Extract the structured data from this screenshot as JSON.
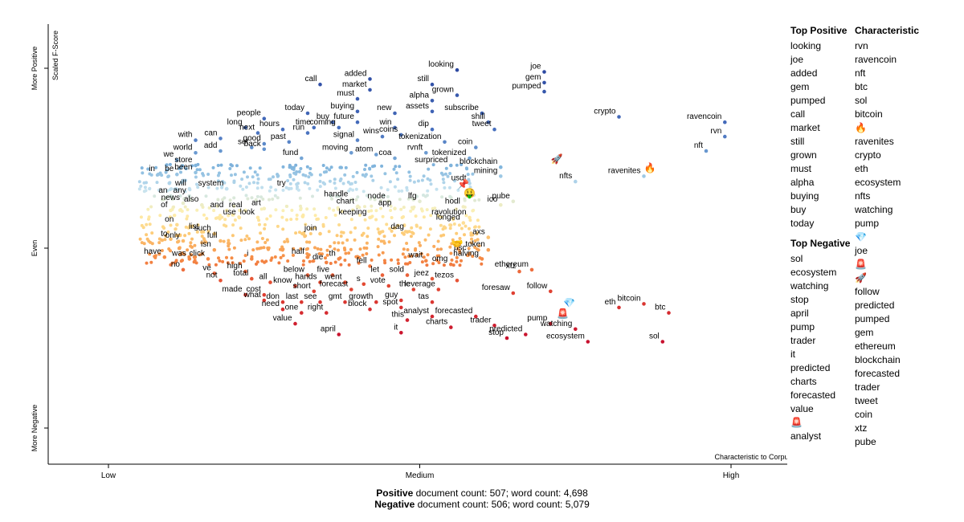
{
  "chart_data": {
    "type": "scatter",
    "title": "",
    "xlabel": "Characteristic to Corpus",
    "ylabel": "Scaled F-Score",
    "x_ticks": [
      "Low",
      "Medium",
      "High"
    ],
    "y_ticks": [
      "More Negative",
      "Even",
      "More Positive"
    ],
    "xlim": [
      0,
      1
    ],
    "ylim": [
      -1,
      1
    ],
    "labeled_points": [
      {
        "term": "joe",
        "x": 0.7,
        "y": 0.98
      },
      {
        "term": "looking",
        "x": 0.56,
        "y": 0.99
      },
      {
        "term": "gem",
        "x": 0.7,
        "y": 0.92
      },
      {
        "term": "added",
        "x": 0.42,
        "y": 0.94
      },
      {
        "term": "call",
        "x": 0.34,
        "y": 0.91
      },
      {
        "term": "still",
        "x": 0.52,
        "y": 0.91
      },
      {
        "term": "pumped",
        "x": 0.7,
        "y": 0.87
      },
      {
        "term": "market",
        "x": 0.42,
        "y": 0.88
      },
      {
        "term": "grown",
        "x": 0.56,
        "y": 0.85
      },
      {
        "term": "must",
        "x": 0.4,
        "y": 0.83
      },
      {
        "term": "alpha",
        "x": 0.52,
        "y": 0.82
      },
      {
        "term": "today",
        "x": 0.32,
        "y": 0.75
      },
      {
        "term": "buying",
        "x": 0.4,
        "y": 0.76
      },
      {
        "term": "new",
        "x": 0.46,
        "y": 0.75
      },
      {
        "term": "assets",
        "x": 0.52,
        "y": 0.76
      },
      {
        "term": "subscribe",
        "x": 0.6,
        "y": 0.75
      },
      {
        "term": "crypto",
        "x": 0.82,
        "y": 0.73
      },
      {
        "term": "people",
        "x": 0.25,
        "y": 0.72
      },
      {
        "term": "buy",
        "x": 0.36,
        "y": 0.7
      },
      {
        "term": "future",
        "x": 0.4,
        "y": 0.7
      },
      {
        "term": "shill",
        "x": 0.61,
        "y": 0.7
      },
      {
        "term": "ravencoin",
        "x": 0.99,
        "y": 0.7
      },
      {
        "term": "long",
        "x": 0.22,
        "y": 0.67
      },
      {
        "term": "time",
        "x": 0.33,
        "y": 0.67
      },
      {
        "term": "coming",
        "x": 0.37,
        "y": 0.67
      },
      {
        "term": "win",
        "x": 0.46,
        "y": 0.67
      },
      {
        "term": "hours",
        "x": 0.28,
        "y": 0.66
      },
      {
        "term": "dip",
        "x": 0.52,
        "y": 0.66
      },
      {
        "term": "tweet",
        "x": 0.62,
        "y": 0.66
      },
      {
        "term": "next",
        "x": 0.24,
        "y": 0.64
      },
      {
        "term": "run",
        "x": 0.32,
        "y": 0.64
      },
      {
        "term": "wins",
        "x": 0.44,
        "y": 0.62
      },
      {
        "term": "coins",
        "x": 0.47,
        "y": 0.63
      },
      {
        "term": "rvn",
        "x": 0.99,
        "y": 0.62
      },
      {
        "term": "with",
        "x": 0.14,
        "y": 0.6
      },
      {
        "term": "can",
        "x": 0.18,
        "y": 0.61
      },
      {
        "term": "signal",
        "x": 0.4,
        "y": 0.6
      },
      {
        "term": "tokenization",
        "x": 0.54,
        "y": 0.59
      },
      {
        "term": "good",
        "x": 0.25,
        "y": 0.58
      },
      {
        "term": "past",
        "x": 0.29,
        "y": 0.59
      },
      {
        "term": "set",
        "x": 0.23,
        "y": 0.56
      },
      {
        "term": "back",
        "x": 0.25,
        "y": 0.55
      },
      {
        "term": "coin",
        "x": 0.59,
        "y": 0.56
      },
      {
        "term": "nft",
        "x": 0.96,
        "y": 0.54
      },
      {
        "term": "add",
        "x": 0.18,
        "y": 0.54
      },
      {
        "term": "world",
        "x": 0.14,
        "y": 0.53
      },
      {
        "term": "moving",
        "x": 0.39,
        "y": 0.53
      },
      {
        "term": "atom",
        "x": 0.43,
        "y": 0.52
      },
      {
        "term": "rvnft",
        "x": 0.51,
        "y": 0.53
      },
      {
        "term": "fund",
        "x": 0.31,
        "y": 0.5
      },
      {
        "term": "coa",
        "x": 0.46,
        "y": 0.5
      },
      {
        "term": "tokenized",
        "x": 0.58,
        "y": 0.5
      },
      {
        "term": "we",
        "x": 0.11,
        "y": 0.49
      },
      {
        "term": "store",
        "x": 0.14,
        "y": 0.46
      },
      {
        "term": "surpriced",
        "x": 0.55,
        "y": 0.46
      },
      {
        "term": "blockchain",
        "x": 0.63,
        "y": 0.45
      },
      {
        "term": "in",
        "x": 0.08,
        "y": 0.41
      },
      {
        "term": "be",
        "x": 0.11,
        "y": 0.41
      },
      {
        "term": "been",
        "x": 0.14,
        "y": 0.42
      },
      {
        "term": "mining",
        "x": 0.63,
        "y": 0.4
      },
      {
        "term": "ravenites",
        "x": 0.86,
        "y": 0.4
      },
      {
        "term": "nfts",
        "x": 0.75,
        "y": 0.37
      },
      {
        "term": "usdt",
        "x": 0.58,
        "y": 0.36
      },
      {
        "term": "will",
        "x": 0.13,
        "y": 0.33
      },
      {
        "term": "system",
        "x": 0.19,
        "y": 0.33
      },
      {
        "term": "try",
        "x": 0.29,
        "y": 0.33
      },
      {
        "term": "an",
        "x": 0.1,
        "y": 0.29
      },
      {
        "term": "any",
        "x": 0.13,
        "y": 0.29
      },
      {
        "term": "handle",
        "x": 0.39,
        "y": 0.27
      },
      {
        "term": "node",
        "x": 0.45,
        "y": 0.26
      },
      {
        "term": "lfg",
        "x": 0.5,
        "y": 0.26
      },
      {
        "term": "pube",
        "x": 0.65,
        "y": 0.26
      },
      {
        "term": "news",
        "x": 0.12,
        "y": 0.25
      },
      {
        "term": "also",
        "x": 0.15,
        "y": 0.24
      },
      {
        "term": "ico",
        "x": 0.63,
        "y": 0.24
      },
      {
        "term": "chart",
        "x": 0.4,
        "y": 0.23
      },
      {
        "term": "app",
        "x": 0.46,
        "y": 0.22
      },
      {
        "term": "hodl",
        "x": 0.57,
        "y": 0.23
      },
      {
        "term": "of",
        "x": 0.1,
        "y": 0.21
      },
      {
        "term": "and",
        "x": 0.19,
        "y": 0.21
      },
      {
        "term": "real",
        "x": 0.22,
        "y": 0.21
      },
      {
        "term": "art",
        "x": 0.25,
        "y": 0.22
      },
      {
        "term": "use",
        "x": 0.21,
        "y": 0.17
      },
      {
        "term": "look",
        "x": 0.24,
        "y": 0.17
      },
      {
        "term": "keeping",
        "x": 0.42,
        "y": 0.17
      },
      {
        "term": "ravolution",
        "x": 0.58,
        "y": 0.17
      },
      {
        "term": "on",
        "x": 0.11,
        "y": 0.13
      },
      {
        "term": "longed",
        "x": 0.57,
        "y": 0.14
      },
      {
        "term": "list",
        "x": 0.15,
        "y": 0.09
      },
      {
        "term": "such",
        "x": 0.17,
        "y": 0.08
      },
      {
        "term": "join",
        "x": 0.34,
        "y": 0.08
      },
      {
        "term": "dag",
        "x": 0.48,
        "y": 0.09
      },
      {
        "term": "axs",
        "x": 0.61,
        "y": 0.06
      },
      {
        "term": "to",
        "x": 0.1,
        "y": 0.05
      },
      {
        "term": "only",
        "x": 0.12,
        "y": 0.04
      },
      {
        "term": "full",
        "x": 0.18,
        "y": 0.04
      },
      {
        "term": "isn",
        "x": 0.17,
        "y": -0.01
      },
      {
        "term": "bsc",
        "x": 0.58,
        "y": -0.03
      },
      {
        "term": "token",
        "x": 0.61,
        "y": -0.01
      },
      {
        "term": "have",
        "x": 0.09,
        "y": -0.05
      },
      {
        "term": "half",
        "x": 0.32,
        "y": -0.05
      },
      {
        "term": "halving",
        "x": 0.6,
        "y": -0.06
      },
      {
        "term": "was",
        "x": 0.13,
        "y": -0.06
      },
      {
        "term": "click",
        "x": 0.16,
        "y": -0.06
      },
      {
        "term": "i",
        "x": 0.23,
        "y": -0.06
      },
      {
        "term": "th",
        "x": 0.37,
        "y": -0.06
      },
      {
        "term": "die",
        "x": 0.35,
        "y": -0.08
      },
      {
        "term": "wait",
        "x": 0.51,
        "y": -0.07
      },
      {
        "term": "fell",
        "x": 0.42,
        "y": -0.1
      },
      {
        "term": "omg",
        "x": 0.55,
        "y": -0.09
      },
      {
        "term": "no",
        "x": 0.12,
        "y": -0.12
      },
      {
        "term": "high",
        "x": 0.22,
        "y": -0.13
      },
      {
        "term": "xtz",
        "x": 0.66,
        "y": -0.13
      },
      {
        "term": "ethereum",
        "x": 0.68,
        "y": -0.12
      },
      {
        "term": "ve",
        "x": 0.17,
        "y": -0.14
      },
      {
        "term": "five",
        "x": 0.36,
        "y": -0.15
      },
      {
        "term": "below",
        "x": 0.32,
        "y": -0.15
      },
      {
        "term": "let",
        "x": 0.44,
        "y": -0.15
      },
      {
        "term": "sold",
        "x": 0.48,
        "y": -0.15
      },
      {
        "term": "total",
        "x": 0.23,
        "y": -0.17
      },
      {
        "term": "jeez",
        "x": 0.52,
        "y": -0.17
      },
      {
        "term": "tezos",
        "x": 0.56,
        "y": -0.18
      },
      {
        "term": "not",
        "x": 0.18,
        "y": -0.18
      },
      {
        "term": "all",
        "x": 0.26,
        "y": -0.19
      },
      {
        "term": "hands",
        "x": 0.34,
        "y": -0.19
      },
      {
        "term": "went",
        "x": 0.38,
        "y": -0.19
      },
      {
        "term": "s",
        "x": 0.41,
        "y": -0.2
      },
      {
        "term": "know",
        "x": 0.3,
        "y": -0.21
      },
      {
        "term": "vote",
        "x": 0.45,
        "y": -0.21
      },
      {
        "term": "forecast",
        "x": 0.39,
        "y": -0.23
      },
      {
        "term": "leverage",
        "x": 0.53,
        "y": -0.23
      },
      {
        "term": "the",
        "x": 0.49,
        "y": -0.23
      },
      {
        "term": "follow",
        "x": 0.71,
        "y": -0.24
      },
      {
        "term": "short",
        "x": 0.33,
        "y": -0.24
      },
      {
        "term": "foresaw",
        "x": 0.65,
        "y": -0.25
      },
      {
        "term": "made",
        "x": 0.22,
        "y": -0.26
      },
      {
        "term": "cost",
        "x": 0.25,
        "y": -0.26
      },
      {
        "term": "what",
        "x": 0.25,
        "y": -0.29
      },
      {
        "term": "don",
        "x": 0.28,
        "y": -0.3
      },
      {
        "term": "last",
        "x": 0.31,
        "y": -0.3
      },
      {
        "term": "see",
        "x": 0.34,
        "y": -0.3
      },
      {
        "term": "gmt",
        "x": 0.38,
        "y": -0.3
      },
      {
        "term": "growth",
        "x": 0.43,
        "y": -0.3
      },
      {
        "term": "guy",
        "x": 0.47,
        "y": -0.29
      },
      {
        "term": "tas",
        "x": 0.52,
        "y": -0.3
      },
      {
        "term": "bitcoin",
        "x": 0.86,
        "y": -0.31
      },
      {
        "term": "spot",
        "x": 0.47,
        "y": -0.33
      },
      {
        "term": "eth",
        "x": 0.82,
        "y": -0.33
      },
      {
        "term": "need",
        "x": 0.28,
        "y": -0.34
      },
      {
        "term": "block",
        "x": 0.42,
        "y": -0.34
      },
      {
        "term": "one",
        "x": 0.31,
        "y": -0.36
      },
      {
        "term": "right",
        "x": 0.35,
        "y": -0.36
      },
      {
        "term": "btc",
        "x": 0.9,
        "y": -0.36
      },
      {
        "term": "forecasted",
        "x": 0.59,
        "y": -0.38
      },
      {
        "term": "analyst",
        "x": 0.52,
        "y": -0.38
      },
      {
        "term": "this",
        "x": 0.48,
        "y": -0.4
      },
      {
        "term": "pump",
        "x": 0.71,
        "y": -0.42
      },
      {
        "term": "value",
        "x": 0.3,
        "y": -0.42
      },
      {
        "term": "trader",
        "x": 0.62,
        "y": -0.43
      },
      {
        "term": "charts",
        "x": 0.55,
        "y": -0.44
      },
      {
        "term": "watching",
        "x": 0.75,
        "y": -0.45
      },
      {
        "term": "it",
        "x": 0.47,
        "y": -0.47
      },
      {
        "term": "april",
        "x": 0.37,
        "y": -0.48
      },
      {
        "term": "predicted",
        "x": 0.67,
        "y": -0.48
      },
      {
        "term": "stop",
        "x": 0.64,
        "y": -0.5
      },
      {
        "term": "ecosystem",
        "x": 0.77,
        "y": -0.52
      },
      {
        "term": "sol",
        "x": 0.89,
        "y": -0.52
      }
    ],
    "emoji_points": [
      {
        "term": "rocket",
        "glyph": "🚀",
        "x": 0.72,
        "y": 0.5
      },
      {
        "term": "fire",
        "glyph": "🔥",
        "x": 0.87,
        "y": 0.45
      },
      {
        "term": "sign",
        "glyph": "📌",
        "x": 0.57,
        "y": 0.36
      },
      {
        "term": "money-face",
        "glyph": "🤑",
        "x": 0.58,
        "y": 0.31
      },
      {
        "term": "hand",
        "glyph": "🤝",
        "x": 0.56,
        "y": 0.03
      },
      {
        "term": "gem",
        "glyph": "💎",
        "x": 0.74,
        "y": -0.3
      },
      {
        "term": "siren",
        "glyph": "🚨",
        "x": 0.73,
        "y": -0.36
      }
    ]
  },
  "axis": {
    "y_top": "More Positive",
    "y_mid": "Even",
    "y_bottom": "More Negative",
    "y_title": "Scaled F-Score",
    "x_low": "Low",
    "x_mid": "Medium",
    "x_high": "High",
    "x_title": "Characteristic to Corpus"
  },
  "side": {
    "top_positive_title": "Top Positive",
    "top_positive": [
      "looking",
      "joe",
      "added",
      "gem",
      "pumped",
      "call",
      "market",
      "still",
      "grown",
      "must",
      "alpha",
      "buying",
      "buy",
      "today"
    ],
    "top_negative_title": "Top Negative",
    "top_negative": [
      "sol",
      "ecosystem",
      "watching",
      "stop",
      "april",
      "pump",
      "trader",
      "it",
      "predicted",
      "charts",
      "forecasted",
      "value",
      "🚨",
      "analyst"
    ],
    "characteristic_title": "Characteristic",
    "characteristic": [
      "rvn",
      "ravencoin",
      "nft",
      "btc",
      "sol",
      "bitcoin",
      "🔥",
      "ravenites",
      "crypto",
      "eth",
      "ecosystem",
      "nfts",
      "watching",
      "pump",
      "💎",
      "joe",
      "🚨",
      "🚀",
      "follow",
      "predicted",
      "pumped",
      "gem",
      "ethereum",
      "blockchain",
      "forecasted",
      "trader",
      "tweet",
      "coin",
      "xtz",
      "pube"
    ]
  },
  "footer": {
    "pos_label": "Positive",
    "pos_text": "document count: 507; word count: 4,698",
    "neg_label": "Negative",
    "neg_text": "document count: 506; word count: 5,079"
  },
  "colors": {
    "positive_dark": "#3a5aa8",
    "positive_light": "#a9d3ec",
    "neutral": "#fef0b0",
    "negative_light": "#fdb86a",
    "negative_dark": "#c8102e",
    "axis": "#000000"
  }
}
